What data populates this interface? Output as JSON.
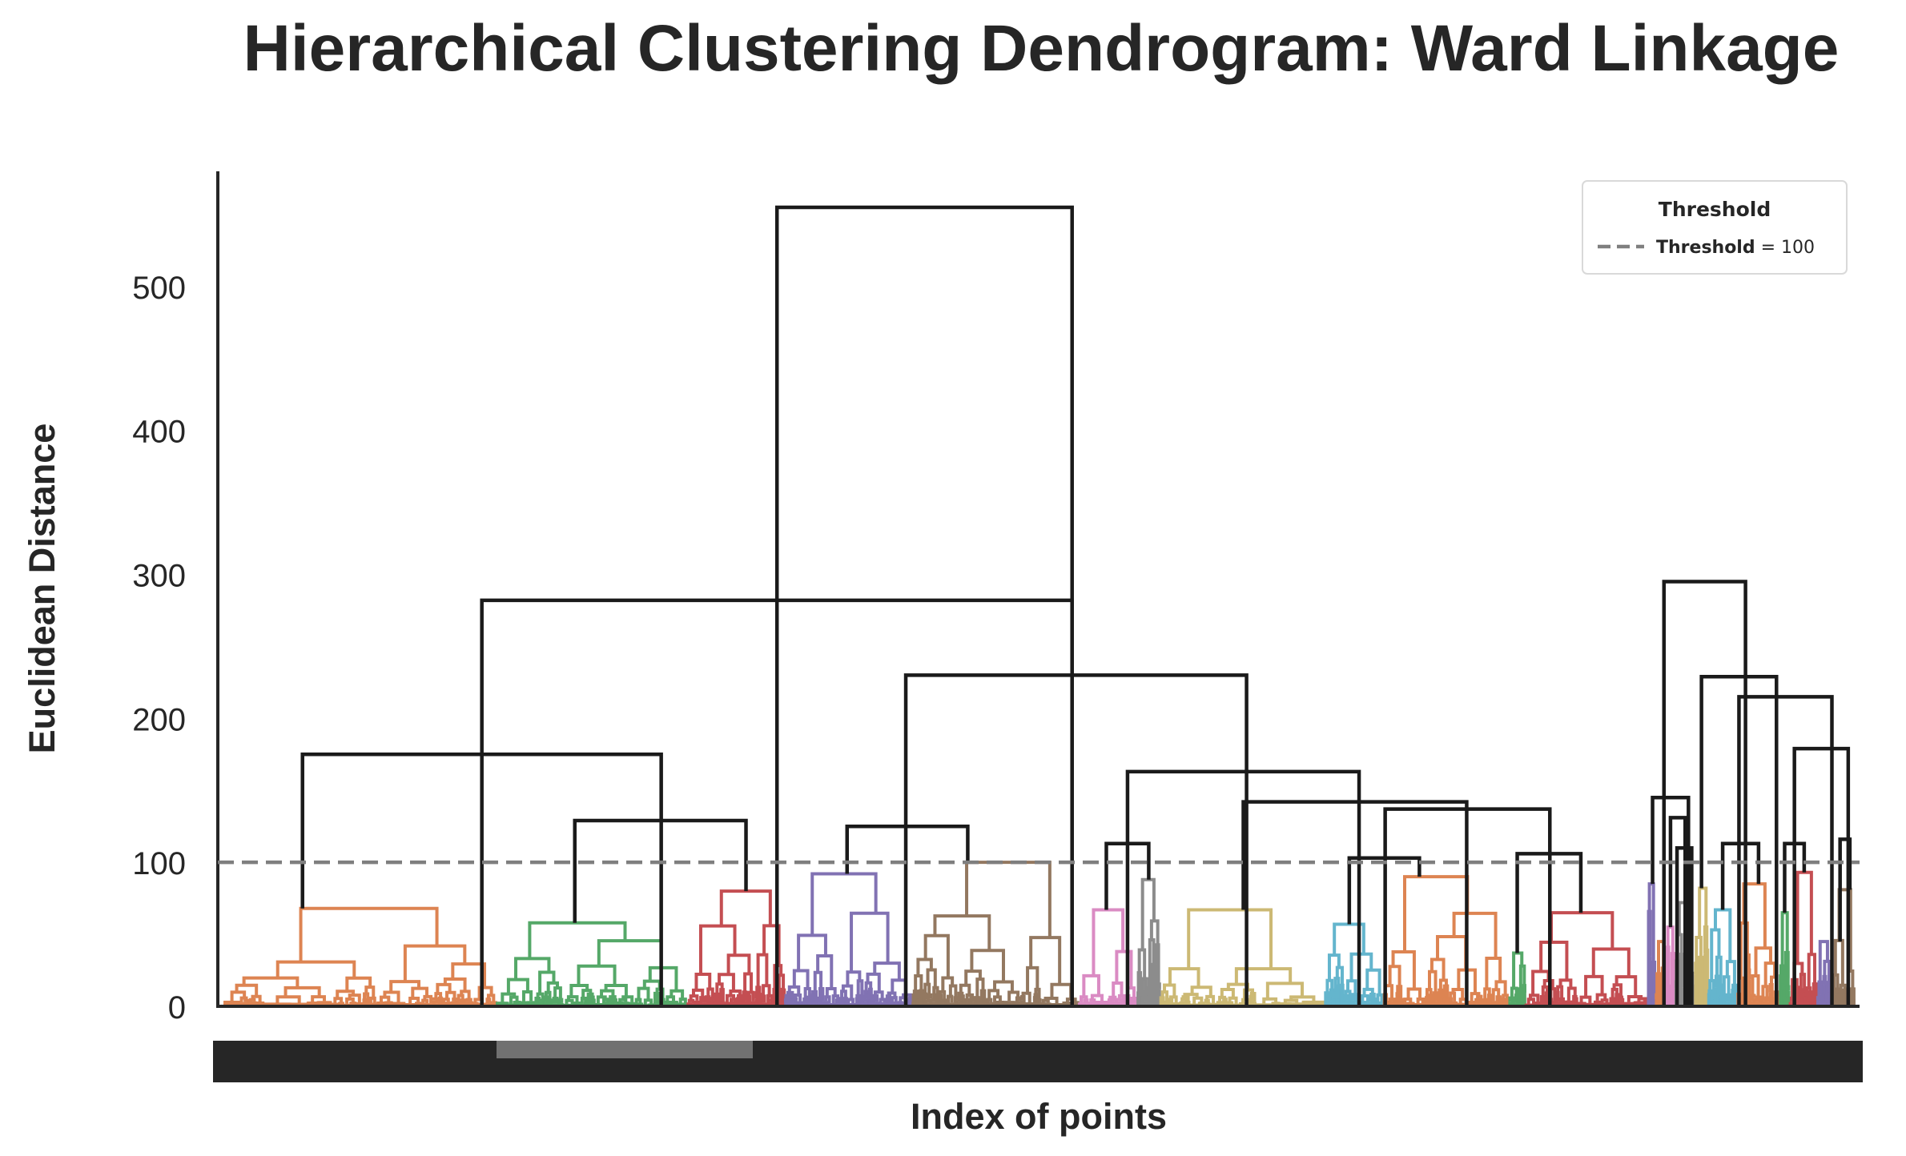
{
  "chart_data": {
    "type": "dendrogram",
    "title": "Hierarchical Clustering Dendrogram: Ward Linkage",
    "xlabel": "Index of points",
    "ylabel": "Euclidean Distance",
    "ylim": [
      0,
      580
    ],
    "yticks": [
      0,
      100,
      200,
      300,
      400,
      500
    ],
    "threshold": 100,
    "legend": {
      "title": "Threshold",
      "label_bold": "Threshold",
      "label_rest": " = 100",
      "placement": "top-right"
    },
    "colors": {
      "link_above": "#1a1a1a",
      "threshold": "#7f7f7f"
    },
    "leaf_x_range": [
      0,
      1000
    ],
    "clusters": [
      {
        "color": "#dd8452",
        "x0": 0,
        "x1": 167,
        "height": 68
      },
      {
        "color": "#55a868",
        "x0": 167,
        "x1": 284,
        "height": 58
      },
      {
        "color": "#c44e52",
        "x0": 284,
        "x1": 344,
        "height": 80
      },
      {
        "color": "#8172b3",
        "x0": 344,
        "x1": 422,
        "height": 92
      },
      {
        "color": "#937860",
        "x0": 422,
        "x1": 524,
        "height": 100
      },
      {
        "color": "#da8bc3",
        "x0": 524,
        "x1": 560,
        "height": 67
      },
      {
        "color": "#8c8c8c",
        "x0": 560,
        "x1": 574,
        "height": 88
      },
      {
        "color": "#ccb974",
        "x0": 574,
        "x1": 675,
        "height": 67
      },
      {
        "color": "#64b5cd",
        "x0": 675,
        "x1": 711,
        "height": 57
      },
      {
        "color": "#dd8452",
        "x0": 711,
        "x1": 788,
        "height": 90
      },
      {
        "color": "#55a868",
        "x0": 788,
        "x1": 798,
        "height": 37
      },
      {
        "color": "#c44e52",
        "x0": 798,
        "x1": 873,
        "height": 65
      },
      {
        "color": "#8172b3",
        "x0": 873,
        "x1": 878,
        "height": 85
      },
      {
        "color": "#dd8452",
        "x0": 878,
        "x1": 884,
        "height": 45
      },
      {
        "color": "#da8bc3",
        "x0": 884,
        "x1": 890,
        "height": 55
      },
      {
        "color": "#8c8c8c",
        "x0": 890,
        "x1": 902,
        "height": 72
      },
      {
        "color": "#ccb974",
        "x0": 902,
        "x1": 910,
        "height": 82
      },
      {
        "color": "#64b5cd",
        "x0": 910,
        "x1": 928,
        "height": 67
      },
      {
        "color": "#dd8452",
        "x0": 928,
        "x1": 954,
        "height": 85
      },
      {
        "color": "#55a868",
        "x0": 954,
        "x1": 960,
        "height": 65
      },
      {
        "color": "#c44e52",
        "x0": 960,
        "x1": 977,
        "height": 93
      },
      {
        "color": "#8172b3",
        "x0": 977,
        "x1": 986,
        "height": 45
      },
      {
        "color": "#937860",
        "x0": 986,
        "x1": 1000,
        "height": 81
      }
    ],
    "links_above": [
      {
        "x": [
          339,
          339,
          520,
          520
        ],
        "y": [
          0,
          555,
          555,
          0
        ],
        "role": "root"
      },
      {
        "x": [
          158,
          158,
          520,
          520
        ],
        "y": [
          0,
          282,
          282,
          0
        ]
      },
      {
        "x": [
          48,
          48,
          268,
          268
        ],
        "y": [
          68,
          175,
          175,
          0
        ]
      },
      {
        "x": [
          215,
          215,
          320,
          320
        ],
        "y": [
          58,
          129,
          129,
          80
        ]
      },
      {
        "x": [
          418,
          418,
          627,
          627
        ],
        "y": [
          0,
          230,
          230,
          0
        ]
      },
      {
        "x": [
          382,
          382,
          456,
          456
        ],
        "y": [
          92,
          125,
          125,
          100
        ]
      },
      {
        "x": [
          554,
          554,
          696,
          696
        ],
        "y": [
          0,
          163,
          163,
          0
        ]
      },
      {
        "x": [
          541,
          541,
          567,
          567
        ],
        "y": [
          67,
          113,
          113,
          88
        ]
      },
      {
        "x": [
          625,
          625,
          762,
          762
        ],
        "y": [
          67,
          142,
          142,
          0
        ]
      },
      {
        "x": [
          712,
          712,
          813,
          813
        ],
        "y": [
          0,
          137,
          137,
          0
        ]
      },
      {
        "x": [
          690,
          690,
          733,
          733
        ],
        "y": [
          57,
          103,
          103,
          90
        ]
      },
      {
        "x": [
          793,
          793,
          832,
          832
        ],
        "y": [
          37,
          106,
          106,
          65
        ]
      },
      {
        "x": [
          883,
          883,
          933,
          933
        ],
        "y": [
          0,
          295,
          295,
          0
        ]
      },
      {
        "x": [
          876,
          876,
          898,
          898
        ],
        "y": [
          85,
          145,
          145,
          0
        ]
      },
      {
        "x": [
          887,
          887,
          896,
          896
        ],
        "y": [
          55,
          131,
          131,
          0
        ]
      },
      {
        "x": [
          881,
          881,
          896,
          896
        ],
        "y": [
          45,
          0,
          0,
          0
        ],
        "role": "hidden"
      },
      {
        "x": [
          891,
          891,
          900,
          900
        ],
        "y": [
          0,
          110,
          110,
          0
        ]
      },
      {
        "x": [
          906,
          906,
          952,
          952
        ],
        "y": [
          82,
          229,
          229,
          0
        ]
      },
      {
        "x": [
          929,
          929,
          986,
          986
        ],
        "y": [
          0,
          215,
          215,
          0
        ]
      },
      {
        "x": [
          919,
          919,
          941,
          941
        ],
        "y": [
          67,
          113,
          113,
          85
        ]
      },
      {
        "x": [
          963,
          963,
          996,
          996
        ],
        "y": [
          0,
          179,
          179,
          0
        ]
      },
      {
        "x": [
          957,
          957,
          969,
          969
        ],
        "y": [
          65,
          113,
          113,
          93
        ]
      },
      {
        "x": [
          991,
          991,
          997,
          997
        ],
        "y": [
          45,
          116,
          116,
          81
        ]
      }
    ]
  }
}
